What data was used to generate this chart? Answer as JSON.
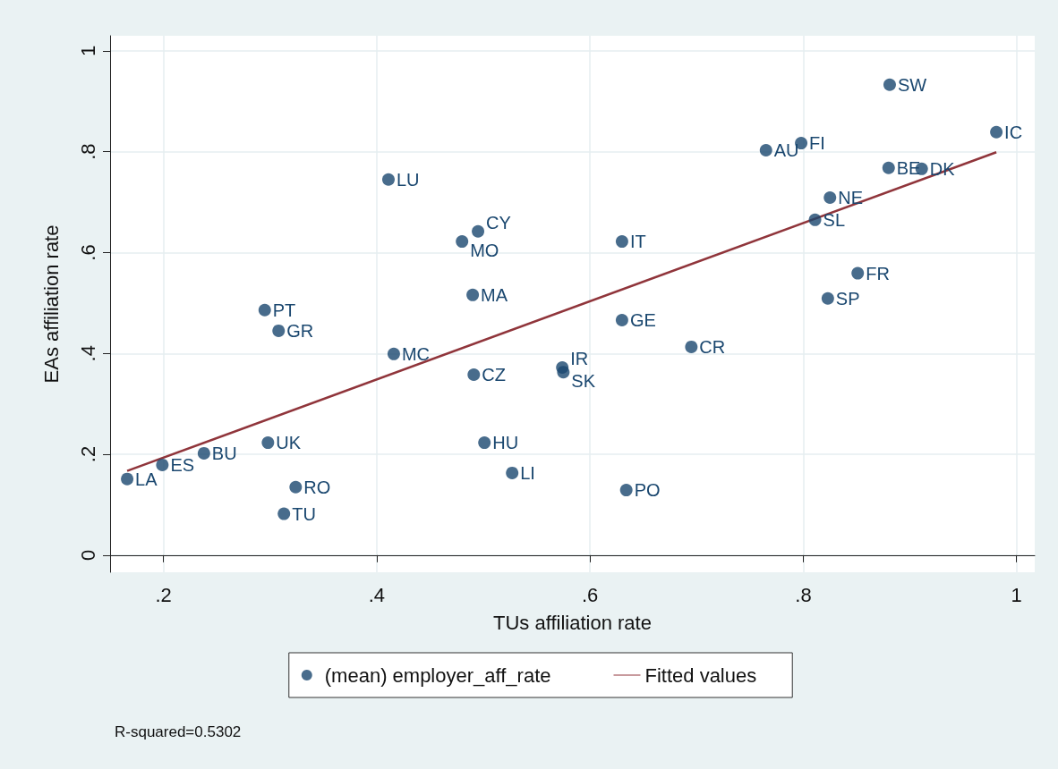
{
  "chart_data": {
    "type": "scatter",
    "xlabel": "TUs affiliation rate",
    "ylabel": "EAs affiliation rate",
    "xlim": [
      0.15,
      1.017
    ],
    "ylim": [
      -0.034,
      1.03
    ],
    "xticks": [
      {
        "value": 0.2,
        "label": ".2"
      },
      {
        "value": 0.4,
        "label": ".4"
      },
      {
        "value": 0.6,
        "label": ".6"
      },
      {
        "value": 0.8,
        "label": ".8"
      },
      1
    ],
    "yticks": [
      0,
      {
        "value": 0.2,
        "label": ".2"
      },
      {
        "value": 0.4,
        "label": ".4"
      },
      {
        "value": 0.6,
        "label": ".6"
      },
      {
        "value": 0.8,
        "label": ".8"
      },
      1
    ],
    "grid": true,
    "legend": "bottom",
    "marker": "circle",
    "series": [
      {
        "name": "(mean) employer_aff_rate",
        "color": "#1a476f",
        "x": [
          0.166,
          0.199,
          0.238,
          0.298,
          0.324,
          0.313,
          0.295,
          0.308,
          0.411,
          0.416,
          0.48,
          0.495,
          0.49,
          0.491,
          0.501,
          0.527,
          0.574,
          0.575,
          0.63,
          0.63,
          0.634,
          0.695,
          0.765,
          0.798,
          0.881,
          0.981,
          0.88,
          0.911,
          0.825,
          0.811,
          0.851,
          0.823
        ],
        "values": [
          0.151,
          0.179,
          0.202,
          0.223,
          0.135,
          0.082,
          0.486,
          0.445,
          0.745,
          0.399,
          0.622,
          0.642,
          0.516,
          0.358,
          0.223,
          0.163,
          0.372,
          0.363,
          0.622,
          0.466,
          0.129,
          0.413,
          0.803,
          0.817,
          0.933,
          0.839,
          0.768,
          0.766,
          0.709,
          0.665,
          0.559,
          0.509
        ]
      },
      {
        "name": "Fitted values",
        "type": "line",
        "color": "#90353b",
        "marker": "none",
        "x": [
          0.166,
          0.981
        ],
        "values": [
          0.167,
          0.799
        ]
      }
    ],
    "annotations": [
      {
        "text": "LA",
        "x": 0.166,
        "y": 0.151
      },
      {
        "text": "ES",
        "x": 0.199,
        "y": 0.179
      },
      {
        "text": "BU",
        "x": 0.238,
        "y": 0.202
      },
      {
        "text": "UK",
        "x": 0.298,
        "y": 0.223
      },
      {
        "text": "RO",
        "x": 0.324,
        "y": 0.135
      },
      {
        "text": "TU",
        "x": 0.313,
        "y": 0.082
      },
      {
        "text": "PT",
        "x": 0.295,
        "y": 0.486
      },
      {
        "text": "GR",
        "x": 0.308,
        "y": 0.445
      },
      {
        "text": "LU",
        "x": 0.411,
        "y": 0.745
      },
      {
        "text": "MC",
        "x": 0.416,
        "y": 0.399
      },
      {
        "text": "MO",
        "x": 0.48,
        "y": 0.622
      },
      {
        "text": "CY",
        "x": 0.495,
        "y": 0.642
      },
      {
        "text": "MA",
        "x": 0.49,
        "y": 0.516
      },
      {
        "text": "CZ",
        "x": 0.491,
        "y": 0.358
      },
      {
        "text": "HU",
        "x": 0.501,
        "y": 0.223
      },
      {
        "text": "LI",
        "x": 0.527,
        "y": 0.163
      },
      {
        "text": "IR",
        "x": 0.574,
        "y": 0.372
      },
      {
        "text": "SK",
        "x": 0.575,
        "y": 0.363
      },
      {
        "text": "IT",
        "x": 0.63,
        "y": 0.622
      },
      {
        "text": "GE",
        "x": 0.63,
        "y": 0.466
      },
      {
        "text": "PO",
        "x": 0.634,
        "y": 0.129
      },
      {
        "text": "CR",
        "x": 0.695,
        "y": 0.413
      },
      {
        "text": "AU",
        "x": 0.765,
        "y": 0.803
      },
      {
        "text": "FI",
        "x": 0.798,
        "y": 0.817
      },
      {
        "text": "SW",
        "x": 0.881,
        "y": 0.933
      },
      {
        "text": "IC",
        "x": 0.981,
        "y": 0.839
      },
      {
        "text": "BE",
        "x": 0.88,
        "y": 0.768
      },
      {
        "text": "DK",
        "x": 0.911,
        "y": 0.766
      },
      {
        "text": "NE",
        "x": 0.825,
        "y": 0.709
      },
      {
        "text": "SL",
        "x": 0.811,
        "y": 0.665
      },
      {
        "text": "FR",
        "x": 0.851,
        "y": 0.559
      },
      {
        "text": "SP",
        "x": 0.823,
        "y": 0.509
      },
      "R-squared=0.5302"
    ]
  }
}
